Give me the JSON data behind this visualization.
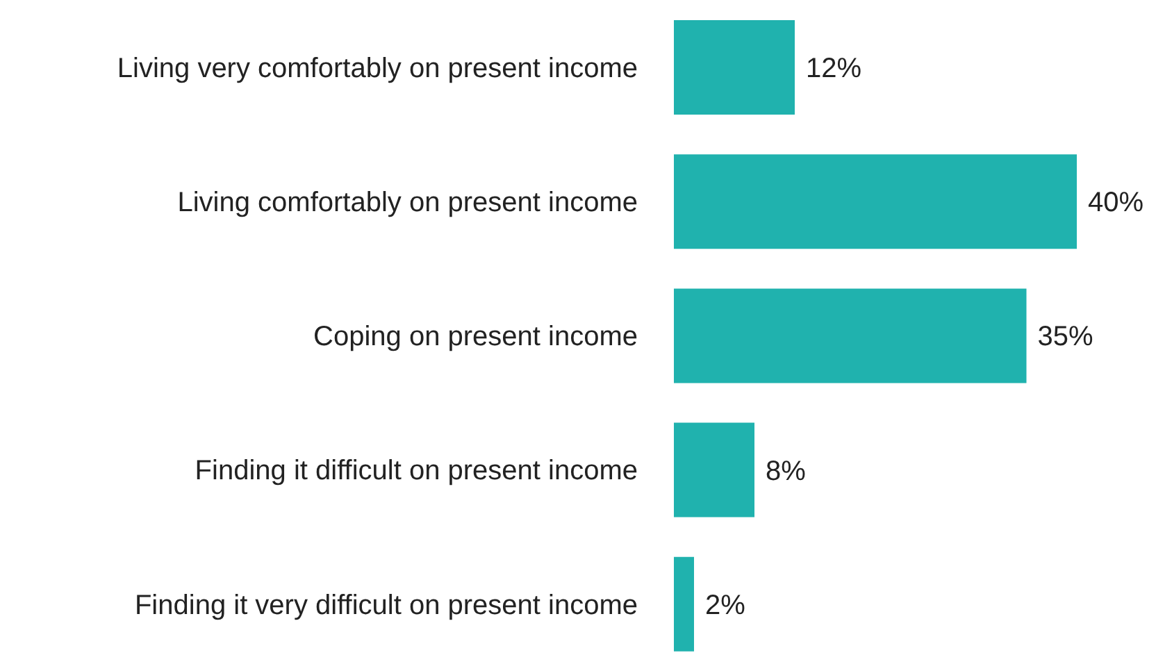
{
  "chart_data": {
    "type": "bar",
    "orientation": "horizontal",
    "categories": [
      "Living very comfortably on present income",
      "Living comfortably on present income",
      "Coping on present income",
      "Finding it difficult on present income",
      "Finding it very difficult on present income"
    ],
    "values": [
      12,
      40,
      35,
      8,
      2
    ],
    "value_labels": [
      "12%",
      "40%",
      "35%",
      "8%",
      "2%"
    ],
    "color": "#20b2ae"
  }
}
